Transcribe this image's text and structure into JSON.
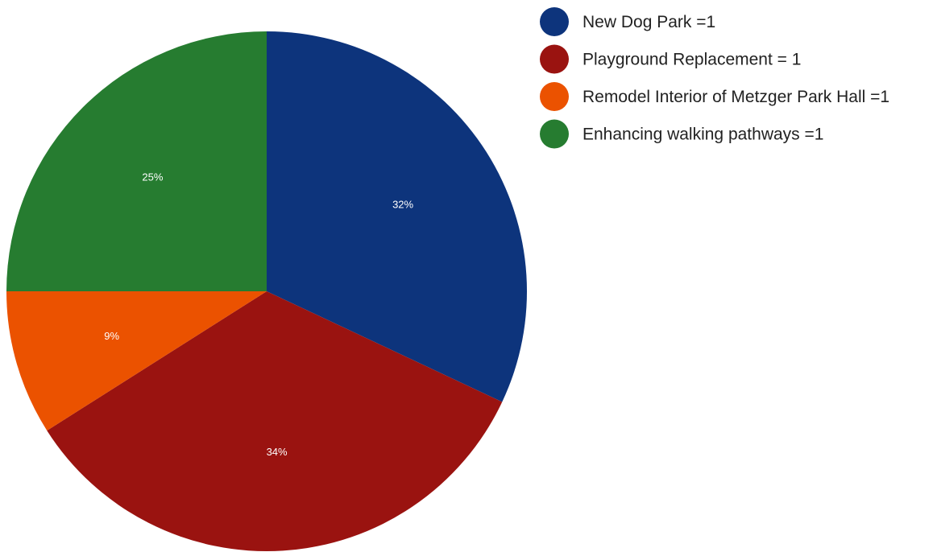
{
  "chart_data": {
    "type": "pie",
    "title": "",
    "slices": [
      {
        "label": "New Dog Park =1",
        "value": 32,
        "value_label": "32%",
        "color": "#0d347c"
      },
      {
        "label": "Playground Replacement = 1",
        "value": 34,
        "value_label": "34%",
        "color": "#9a1310"
      },
      {
        "label": "Remodel Interior of Metzger Park Hall =1",
        "value": 9,
        "value_label": "9%",
        "color": "#eb5200"
      },
      {
        "label": "Enhancing walking pathways =1",
        "value": 25,
        "value_label": "25%",
        "color": "#267c30"
      }
    ],
    "start": "top",
    "direction": "clockwise",
    "legend": "top-right"
  }
}
